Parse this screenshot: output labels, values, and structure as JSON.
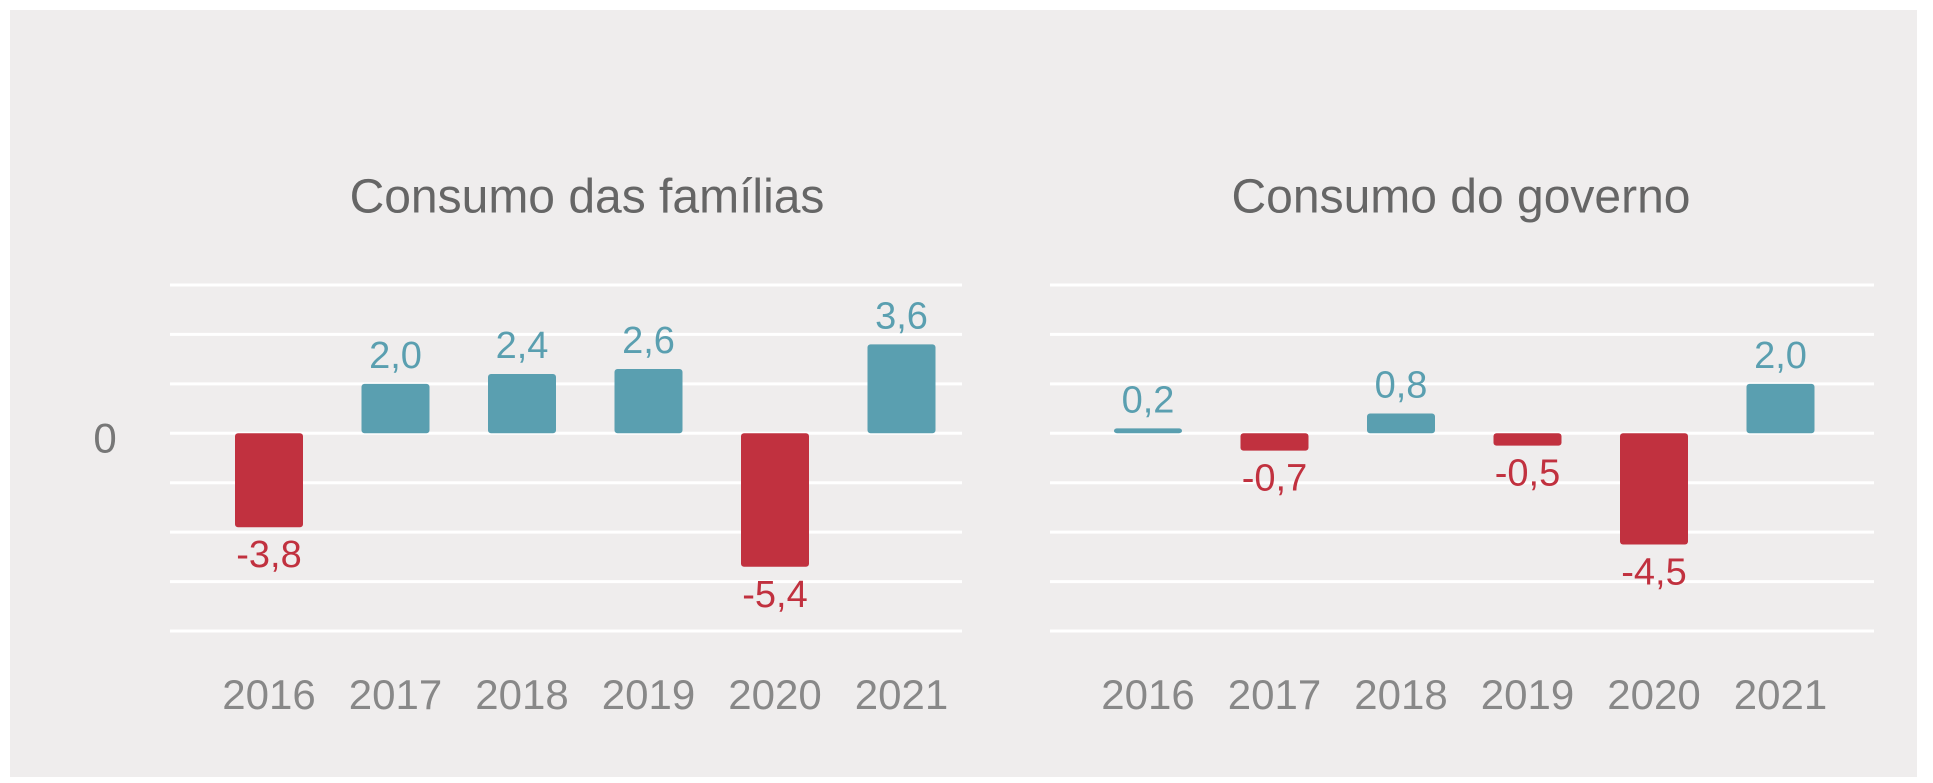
{
  "chart_data": [
    {
      "type": "bar",
      "title": "Consumo das famílias",
      "categories": [
        "2016",
        "2017",
        "2018",
        "2019",
        "2020",
        "2021"
      ],
      "values": [
        -3.8,
        2.0,
        2.4,
        2.6,
        -5.4,
        3.6
      ],
      "value_labels": [
        "-3,8",
        "2,0",
        "2,4",
        "2,6",
        "-5,4",
        "3,6"
      ],
      "positive_color": "#5a9fb0",
      "negative_color": "#c1313f",
      "ylim": [
        -8,
        6
      ],
      "yticks": [
        0
      ],
      "ygrid": [
        -8,
        -6,
        -4,
        -2,
        0,
        2,
        4,
        6
      ],
      "grid": true
    },
    {
      "type": "bar",
      "title": "Consumo do governo",
      "categories": [
        "2016",
        "2017",
        "2018",
        "2019",
        "2020",
        "2021"
      ],
      "values": [
        0.2,
        -0.7,
        0.8,
        -0.5,
        -4.5,
        2.0
      ],
      "value_labels": [
        "0,2",
        "-0,7",
        "0,8",
        "-0,5",
        "-4,5",
        "2,0"
      ],
      "positive_color": "#5a9fb0",
      "negative_color": "#c1313f",
      "ylim": [
        -8,
        6
      ],
      "ygrid": [
        -8,
        -6,
        -4,
        -2,
        0,
        2,
        4,
        6
      ],
      "grid": true
    }
  ]
}
